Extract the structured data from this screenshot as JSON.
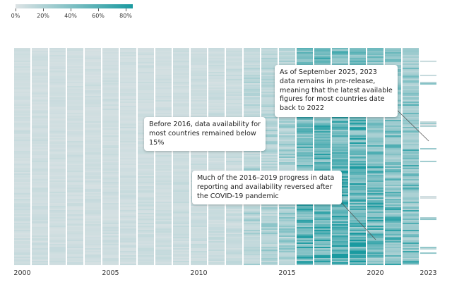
{
  "chart_data": {
    "type": "heatmap",
    "title": "",
    "xlabel": "",
    "ylabel": "",
    "x_categories": [
      2000,
      2001,
      2002,
      2003,
      2004,
      2005,
      2006,
      2007,
      2008,
      2009,
      2010,
      2011,
      2012,
      2013,
      2014,
      2015,
      2016,
      2017,
      2018,
      2019,
      2020,
      2021,
      2022,
      2023
    ],
    "x_tick_labels": [
      "2000",
      "2005",
      "2010",
      "2015",
      "2020",
      "2023"
    ],
    "x_tick_years": [
      2000,
      2005,
      2010,
      2015,
      2020,
      2023
    ],
    "rows_description": "Countries (one thin horizontal row each)",
    "color_scale": {
      "min": 0,
      "max": 85,
      "unit": "%",
      "low_color": "#dde3e5",
      "high_color": "#1a9aa0",
      "legend_ticks": [
        "0%",
        "20%",
        "40%",
        "60%",
        "80%"
      ],
      "legend_values": [
        0,
        20,
        40,
        60,
        80
      ],
      "legend_placement": "top-left"
    },
    "column_summary": [
      {
        "year": 2000,
        "typical_availability": 5,
        "max_availability": 10
      },
      {
        "year": 2001,
        "typical_availability": 5,
        "max_availability": 10
      },
      {
        "year": 2002,
        "typical_availability": 5,
        "max_availability": 10
      },
      {
        "year": 2003,
        "typical_availability": 5,
        "max_availability": 10
      },
      {
        "year": 2004,
        "typical_availability": 5,
        "max_availability": 10
      },
      {
        "year": 2005,
        "typical_availability": 5,
        "max_availability": 10
      },
      {
        "year": 2006,
        "typical_availability": 5,
        "max_availability": 10
      },
      {
        "year": 2007,
        "typical_availability": 5,
        "max_availability": 11
      },
      {
        "year": 2008,
        "typical_availability": 5,
        "max_availability": 11
      },
      {
        "year": 2009,
        "typical_availability": 6,
        "max_availability": 12
      },
      {
        "year": 2010,
        "typical_availability": 6,
        "max_availability": 12
      },
      {
        "year": 2011,
        "typical_availability": 6,
        "max_availability": 13
      },
      {
        "year": 2012,
        "typical_availability": 7,
        "max_availability": 14
      },
      {
        "year": 2013,
        "typical_availability": 10,
        "max_availability": 30
      },
      {
        "year": 2014,
        "typical_availability": 12,
        "max_availability": 35
      },
      {
        "year": 2015,
        "typical_availability": 14,
        "max_availability": 40
      },
      {
        "year": 2016,
        "typical_availability": 35,
        "max_availability": 80
      },
      {
        "year": 2017,
        "typical_availability": 40,
        "max_availability": 82
      },
      {
        "year": 2018,
        "typical_availability": 42,
        "max_availability": 85
      },
      {
        "year": 2019,
        "typical_availability": 40,
        "max_availability": 85
      },
      {
        "year": 2020,
        "typical_availability": 30,
        "max_availability": 80
      },
      {
        "year": 2021,
        "typical_availability": 28,
        "max_availability": 75
      },
      {
        "year": 2022,
        "typical_availability": 22,
        "max_availability": 70
      },
      {
        "year": 2023,
        "typical_availability": 3,
        "max_availability": 40
      }
    ],
    "annotations": [
      {
        "id": "before-2016",
        "text": "Before 2016, data availability for most countries remained below 15%",
        "target_year": 2008
      },
      {
        "id": "covid-reversal",
        "text": "Much of the 2016–2019 progress in data reporting and availability reversed after the COVID-19 pandemic",
        "target_year": 2020
      },
      {
        "id": "pre-release",
        "text": "As of September 2025, 2023 data remains in pre-release, meaning that the latest available figures for most countries date back to 2022",
        "target_year": 2023
      }
    ]
  },
  "annotations": {
    "before_2016": "Before 2016, data availability for most countries remained below 15%",
    "covid": "Much of the 2016–2019 progress in data reporting and availability reversed after the COVID-19 pandemic",
    "pre_release": "As of September 2025, 2023 data remains in pre-release, meaning that the latest available figures for most countries date back to 2022"
  },
  "legend": {
    "labels": [
      "0%",
      "20%",
      "40%",
      "60%",
      "80%"
    ]
  }
}
